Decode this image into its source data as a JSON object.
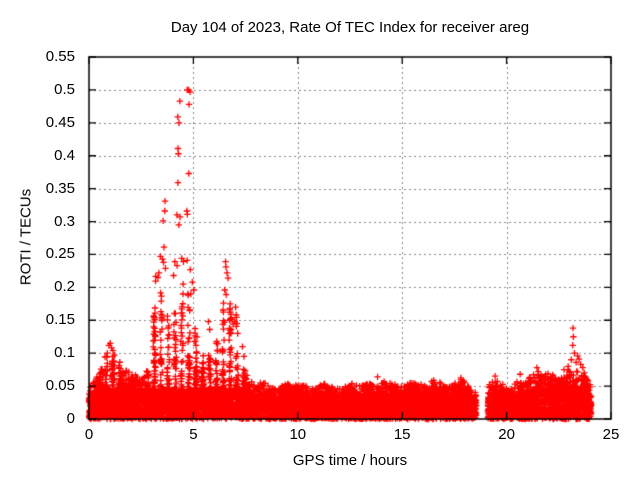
{
  "chart_data": {
    "type": "scatter",
    "title": "Day 104 of 2023, Rate Of TEC Index for receiver areg",
    "xlabel": "GPS time / hours",
    "ylabel": "ROTI / TECUs",
    "xlim": [
      0,
      25
    ],
    "ylim": [
      0,
      0.55
    ],
    "xticks": {
      "values": [
        0,
        5,
        10,
        15,
        20,
        25
      ],
      "labels": [
        "0",
        "5",
        "10",
        "15",
        "20",
        "25"
      ]
    },
    "yticks": {
      "values": [
        0,
        0.05,
        0.1,
        0.15,
        0.2,
        0.25,
        0.3,
        0.35,
        0.4,
        0.45,
        0.5,
        0.55
      ],
      "labels": [
        "0",
        "0.05",
        "0.1",
        "0.15",
        "0.2",
        "0.25",
        "0.3",
        "0.35",
        "0.4",
        "0.45",
        "0.5",
        "0.55"
      ]
    },
    "grid": {
      "visible": true,
      "style": "dashed"
    },
    "legend": {
      "visible": false
    },
    "marker": {
      "shape": "plus",
      "size": 7
    },
    "colors": {
      "marker": "#ff0000",
      "grid": "#8a8a8a",
      "frame": "#000000",
      "text": "#000000",
      "background": "#ffffff"
    },
    "time_range_hours": [
      0,
      24.05
    ],
    "data_gap_hours": [
      18.55,
      19.1
    ],
    "max_roti": 0.5,
    "envelope_max_roti": [
      [
        0,
        0.045
      ],
      [
        0.2,
        0.06
      ],
      [
        0.5,
        0.07
      ],
      [
        0.8,
        0.1
      ],
      [
        1.0,
        0.115
      ],
      [
        1.2,
        0.11
      ],
      [
        1.5,
        0.085
      ],
      [
        2.0,
        0.07
      ],
      [
        2.4,
        0.065
      ],
      [
        2.8,
        0.075
      ],
      [
        3.0,
        0.1
      ],
      [
        3.1,
        0.16
      ],
      [
        3.2,
        0.235
      ],
      [
        3.4,
        0.2
      ],
      [
        3.6,
        0.23
      ],
      [
        3.8,
        0.16
      ],
      [
        4.0,
        0.14
      ],
      [
        4.15,
        0.2
      ],
      [
        4.3,
        0.25
      ],
      [
        4.5,
        0.21
      ],
      [
        4.65,
        0.25
      ],
      [
        4.8,
        0.2
      ],
      [
        5.0,
        0.16
      ],
      [
        5.2,
        0.12
      ],
      [
        5.5,
        0.1
      ],
      [
        5.7,
        0.13
      ],
      [
        5.9,
        0.11
      ],
      [
        6.1,
        0.12
      ],
      [
        6.3,
        0.14
      ],
      [
        6.5,
        0.2
      ],
      [
        6.65,
        0.24
      ],
      [
        6.8,
        0.16
      ],
      [
        7.0,
        0.17
      ],
      [
        7.2,
        0.12
      ],
      [
        7.4,
        0.08
      ],
      [
        7.7,
        0.06
      ],
      [
        8.0,
        0.05
      ],
      [
        8.3,
        0.06
      ],
      [
        8.6,
        0.05
      ],
      [
        9.0,
        0.045
      ],
      [
        9.4,
        0.055
      ],
      [
        9.8,
        0.05
      ],
      [
        10.2,
        0.055
      ],
      [
        10.6,
        0.045
      ],
      [
        11.0,
        0.05
      ],
      [
        11.4,
        0.055
      ],
      [
        11.8,
        0.045
      ],
      [
        12.2,
        0.05
      ],
      [
        12.6,
        0.055
      ],
      [
        13.0,
        0.05
      ],
      [
        13.4,
        0.055
      ],
      [
        13.8,
        0.05
      ],
      [
        14.2,
        0.06
      ],
      [
        14.6,
        0.055
      ],
      [
        15.0,
        0.05
      ],
      [
        15.4,
        0.06
      ],
      [
        15.8,
        0.055
      ],
      [
        16.2,
        0.05
      ],
      [
        16.6,
        0.065
      ],
      [
        17.0,
        0.055
      ],
      [
        17.4,
        0.05
      ],
      [
        17.8,
        0.065
      ],
      [
        18.1,
        0.055
      ],
      [
        18.35,
        0.045
      ],
      [
        18.55,
        0.04
      ],
      [
        19.1,
        0.05
      ],
      [
        19.4,
        0.06
      ],
      [
        19.7,
        0.055
      ],
      [
        20.0,
        0.05
      ],
      [
        20.2,
        0.045
      ],
      [
        20.5,
        0.06
      ],
      [
        20.8,
        0.055
      ],
      [
        21.1,
        0.065
      ],
      [
        21.4,
        0.07
      ],
      [
        21.7,
        0.065
      ],
      [
        22.0,
        0.07
      ],
      [
        22.3,
        0.068
      ],
      [
        22.6,
        0.065
      ],
      [
        22.9,
        0.075
      ],
      [
        23.2,
        0.08
      ],
      [
        23.5,
        0.07
      ],
      [
        23.8,
        0.065
      ],
      [
        24.05,
        0.05
      ]
    ],
    "high_points": [
      [
        4.7,
        0.5
      ],
      [
        4.77,
        0.5
      ],
      [
        4.84,
        0.497
      ],
      [
        4.35,
        0.483
      ],
      [
        4.79,
        0.478
      ],
      [
        4.25,
        0.459
      ],
      [
        4.31,
        0.45
      ],
      [
        4.26,
        0.411
      ],
      [
        4.28,
        0.403
      ],
      [
        4.78,
        0.373
      ],
      [
        4.26,
        0.359
      ],
      [
        3.64,
        0.331
      ],
      [
        3.63,
        0.316
      ],
      [
        3.55,
        0.301
      ],
      [
        4.21,
        0.31
      ],
      [
        4.36,
        0.307
      ],
      [
        4.69,
        0.316
      ],
      [
        4.71,
        0.311
      ],
      [
        4.3,
        0.295
      ],
      [
        3.59,
        0.261
      ],
      [
        3.42,
        0.247
      ],
      [
        3.52,
        0.243
      ],
      [
        3.57,
        0.238
      ],
      [
        3.66,
        0.229
      ],
      [
        4.11,
        0.239
      ],
      [
        4.22,
        0.233
      ],
      [
        4.44,
        0.244
      ],
      [
        4.52,
        0.239
      ],
      [
        4.7,
        0.241
      ],
      [
        4.85,
        0.227
      ],
      [
        3.35,
        0.222
      ],
      [
        3.3,
        0.215
      ],
      [
        4.05,
        0.218
      ],
      [
        4.95,
        0.208
      ],
      [
        5.02,
        0.196
      ],
      [
        4.88,
        0.19
      ],
      [
        6.54,
        0.239
      ],
      [
        6.56,
        0.231
      ],
      [
        6.61,
        0.222
      ],
      [
        6.66,
        0.214
      ],
      [
        6.5,
        0.196
      ],
      [
        6.57,
        0.189
      ],
      [
        6.44,
        0.176
      ],
      [
        6.74,
        0.168
      ],
      [
        6.79,
        0.159
      ],
      [
        6.85,
        0.151
      ],
      [
        6.9,
        0.144
      ],
      [
        7.02,
        0.17
      ],
      [
        7.05,
        0.158
      ],
      [
        6.98,
        0.148
      ],
      [
        7.12,
        0.13
      ],
      [
        5.72,
        0.148
      ],
      [
        5.78,
        0.136
      ],
      [
        7.35,
        0.11
      ],
      [
        7.42,
        0.095
      ],
      [
        0.95,
        0.112
      ],
      [
        1.02,
        0.115
      ],
      [
        1.08,
        0.108
      ],
      [
        1.15,
        0.104
      ],
      [
        0.88,
        0.1
      ],
      [
        1.22,
        0.097
      ],
      [
        13.82,
        0.064
      ],
      [
        23.18,
        0.138
      ],
      [
        23.2,
        0.125
      ],
      [
        23.17,
        0.112
      ],
      [
        23.25,
        0.1
      ],
      [
        23.4,
        0.096
      ],
      [
        23.1,
        0.09
      ],
      [
        23.33,
        0.086
      ],
      [
        23.47,
        0.091
      ],
      [
        23.55,
        0.083
      ],
      [
        22.95,
        0.08
      ],
      [
        22.75,
        0.075
      ],
      [
        23.65,
        0.078
      ],
      [
        23.72,
        0.07
      ],
      [
        21.45,
        0.078
      ],
      [
        21.52,
        0.072
      ],
      [
        20.65,
        0.068
      ],
      [
        19.45,
        0.065
      ]
    ],
    "density_model": {
      "solid_band_env_fraction": 0.6,
      "solid_band_top_min": 0.02,
      "solid_band_top_max": 0.045,
      "n_solid": 6500,
      "n_texture": 2600,
      "column_spacing_hours": 0.33,
      "column_jitter_hours": 0.12,
      "texture_power": 2.1,
      "seed": 1337
    }
  }
}
